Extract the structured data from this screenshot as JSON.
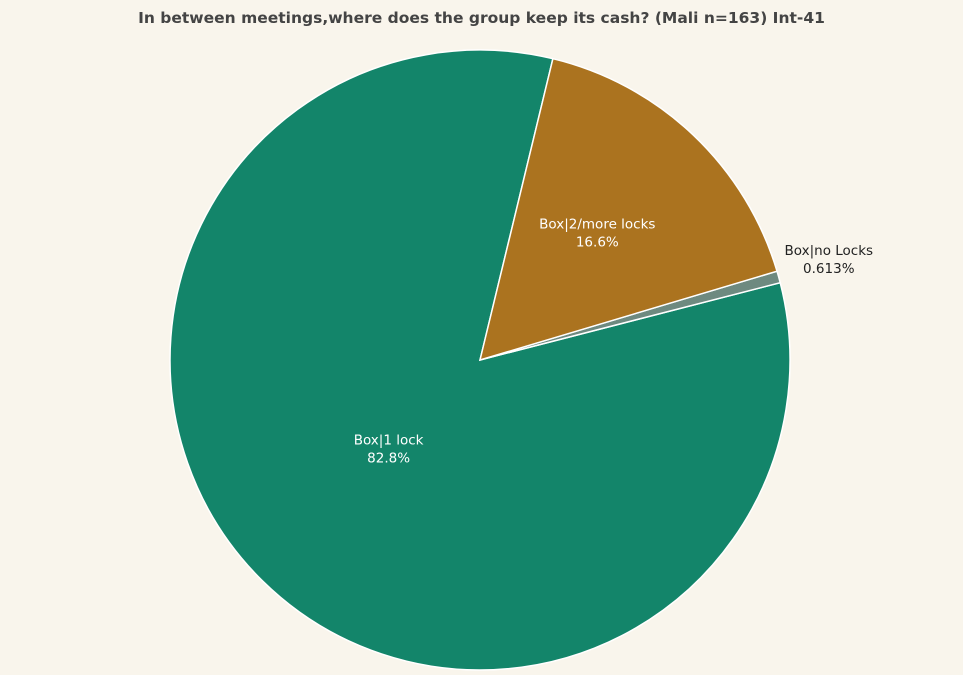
{
  "chart_data": {
    "type": "pie",
    "title": "In between meetings,where does the group keep its cash? (Mali n=163) Int-41",
    "slices": [
      {
        "label": "Box|1 lock",
        "value": 82.8,
        "display": "82.8%",
        "color": "#13856a",
        "text_color": "#ffffff",
        "label_position": "inside"
      },
      {
        "label": "Box|no Locks",
        "value": 0.613,
        "display": "0.613%",
        "color": "#6e8a80",
        "text_color": "#222222",
        "label_position": "outside"
      },
      {
        "label": "Box|2/more locks",
        "value": 16.6,
        "display": "16.6%",
        "color": "#ab731f",
        "text_color": "#ffffff",
        "label_position": "inside"
      }
    ],
    "direction": "counterclockwise"
  }
}
